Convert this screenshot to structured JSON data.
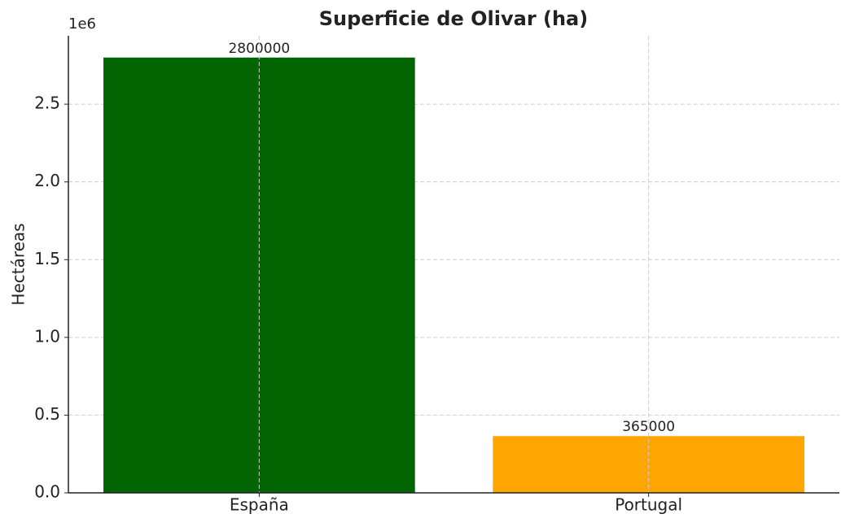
{
  "chart_data": {
    "type": "bar",
    "title": "Superficie de Olivar (ha)",
    "y_label": "Hectáreas",
    "y_offset_label": "1e6",
    "categories": [
      "España",
      "Portugal"
    ],
    "values": [
      2800000,
      365000
    ],
    "colors": [
      "#006400",
      "#ffa500"
    ],
    "ylim": [
      0,
      2940000
    ],
    "yticks": [
      {
        "value": 0,
        "label": "0.0"
      },
      {
        "value": 500000,
        "label": "0.5"
      },
      {
        "value": 1000000,
        "label": "1.0"
      },
      {
        "value": 1500000,
        "label": "1.5"
      },
      {
        "value": 2000000,
        "label": "2.0"
      },
      {
        "value": 2500000,
        "label": "2.5"
      }
    ],
    "grid": true
  }
}
